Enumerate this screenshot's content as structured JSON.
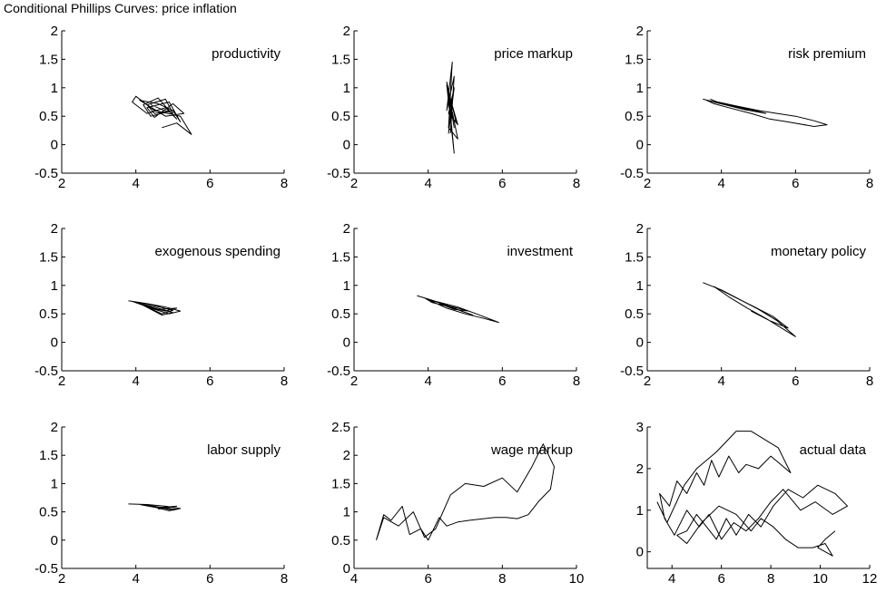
{
  "figure_title": "Conditional Phillips Curves: price inflation",
  "colors": {
    "line": "#000000",
    "background": "#ffffff"
  },
  "chart_data": [
    {
      "type": "line",
      "title": "productivity",
      "xlim": [
        2,
        8
      ],
      "ylim": [
        -0.5,
        2
      ],
      "xticks": [
        "2",
        "4",
        "6",
        "8"
      ],
      "yticks": [
        "-0.5",
        "0",
        "0.5",
        "1",
        "1.5",
        "2"
      ],
      "series": [
        {
          "x": [
            4.7,
            5.1,
            5.5,
            5.2,
            4.5,
            4.0,
            3.9,
            4.3,
            4.8,
            5.1,
            4.6,
            4.2,
            4.4,
            5.0,
            5.2,
            4.9,
            4.3,
            4.5,
            5.0,
            5.3,
            4.8,
            4.1,
            4.6,
            5.0,
            4.5,
            4.3,
            4.8,
            5.0,
            4.7,
            4.4
          ],
          "y": [
            0.3,
            0.38,
            0.18,
            0.5,
            0.6,
            0.85,
            0.75,
            0.55,
            0.65,
            0.45,
            0.82,
            0.7,
            0.5,
            0.6,
            0.4,
            0.75,
            0.65,
            0.48,
            0.72,
            0.55,
            0.5,
            0.78,
            0.72,
            0.6,
            0.55,
            0.7,
            0.8,
            0.55,
            0.62,
            0.7
          ]
        }
      ]
    },
    {
      "type": "line",
      "title": "price markup",
      "xlim": [
        2,
        8
      ],
      "ylim": [
        -0.5,
        2
      ],
      "xticks": [
        "2",
        "4",
        "6",
        "8"
      ],
      "yticks": [
        "-0.5",
        "0",
        "0.5",
        "1",
        "1.5",
        "2"
      ],
      "series": [
        {
          "x": [
            4.6,
            4.7,
            4.5,
            4.65,
            4.55,
            4.8,
            4.5,
            4.7,
            4.55,
            4.6,
            4.75,
            4.5,
            4.7,
            4.6,
            4.65,
            4.55,
            4.7,
            4.55,
            4.8,
            4.6
          ],
          "y": [
            0.2,
            1.2,
            0.6,
            1.45,
            0.3,
            0.1,
            1.05,
            -0.15,
            0.9,
            0.5,
            0.4,
            1.1,
            0.3,
            0.7,
            0.85,
            0.2,
            1.0,
            0.55,
            0.35,
            0.8
          ]
        }
      ]
    },
    {
      "type": "line",
      "title": "risk premium",
      "xlim": [
        2,
        8
      ],
      "ylim": [
        -0.5,
        2
      ],
      "xticks": [
        "2",
        "4",
        "6",
        "8"
      ],
      "yticks": [
        "-0.5",
        "0",
        "0.5",
        "1",
        "1.5",
        "2"
      ],
      "series": [
        {
          "x": [
            3.5,
            4.0,
            4.5,
            5.0,
            5.5,
            6.0,
            6.5,
            6.85,
            6.5,
            5.8,
            5.3,
            4.8,
            4.2,
            3.8,
            3.6,
            4.1,
            4.6,
            5.2,
            4.9,
            4.3,
            3.9,
            4.4,
            5.0,
            4.6,
            4.0,
            3.7
          ],
          "y": [
            0.8,
            0.72,
            0.66,
            0.6,
            0.55,
            0.5,
            0.42,
            0.35,
            0.32,
            0.4,
            0.45,
            0.55,
            0.65,
            0.72,
            0.78,
            0.7,
            0.62,
            0.55,
            0.6,
            0.68,
            0.75,
            0.68,
            0.6,
            0.63,
            0.72,
            0.8
          ]
        }
      ]
    },
    {
      "type": "line",
      "title": "exogenous spending",
      "xlim": [
        2,
        8
      ],
      "ylim": [
        -0.5,
        2
      ],
      "xticks": [
        "2",
        "4",
        "6",
        "8"
      ],
      "yticks": [
        "-0.5",
        "0",
        "0.5",
        "1",
        "1.5",
        "2"
      ],
      "series": [
        {
          "x": [
            3.8,
            4.3,
            4.8,
            5.2,
            4.9,
            4.4,
            4.0,
            4.5,
            5.0,
            4.7,
            4.2,
            3.9,
            4.6,
            5.1,
            4.8,
            4.3,
            4.7,
            5.0,
            4.4,
            4.1
          ],
          "y": [
            0.73,
            0.68,
            0.62,
            0.55,
            0.5,
            0.6,
            0.7,
            0.62,
            0.52,
            0.48,
            0.65,
            0.72,
            0.58,
            0.6,
            0.55,
            0.62,
            0.5,
            0.56,
            0.66,
            0.7
          ]
        }
      ]
    },
    {
      "type": "line",
      "title": "investment",
      "xlim": [
        2,
        8
      ],
      "ylim": [
        -0.5,
        2
      ],
      "xticks": [
        "2",
        "4",
        "6",
        "8"
      ],
      "yticks": [
        "-0.5",
        "0",
        "0.5",
        "1",
        "1.5",
        "2"
      ],
      "series": [
        {
          "x": [
            3.7,
            4.2,
            4.8,
            5.3,
            5.9,
            5.5,
            5.0,
            4.5,
            4.0,
            4.4,
            4.9,
            5.2,
            4.6,
            4.1,
            3.9,
            4.5,
            5.1,
            4.7,
            4.3
          ],
          "y": [
            0.82,
            0.72,
            0.62,
            0.5,
            0.35,
            0.42,
            0.5,
            0.6,
            0.75,
            0.68,
            0.55,
            0.48,
            0.62,
            0.7,
            0.78,
            0.65,
            0.55,
            0.58,
            0.68
          ]
        }
      ]
    },
    {
      "type": "line",
      "title": "monetary policy",
      "xlim": [
        2,
        8
      ],
      "ylim": [
        -0.5,
        2
      ],
      "xticks": [
        "2",
        "4",
        "6",
        "8"
      ],
      "yticks": [
        "-0.5",
        "0",
        "0.5",
        "1",
        "1.5",
        "2"
      ],
      "series": [
        {
          "x": [
            3.5,
            4.0,
            4.5,
            5.0,
            5.5,
            6.0,
            5.7,
            5.2,
            4.7,
            4.2,
            3.8,
            4.4,
            4.9,
            5.4,
            5.8,
            5.3,
            4.8
          ],
          "y": [
            1.05,
            0.92,
            0.75,
            0.58,
            0.38,
            0.1,
            0.22,
            0.42,
            0.6,
            0.8,
            0.98,
            0.78,
            0.62,
            0.45,
            0.25,
            0.38,
            0.55
          ]
        }
      ]
    },
    {
      "type": "line",
      "title": "labor supply",
      "xlim": [
        2,
        8
      ],
      "ylim": [
        -0.5,
        2
      ],
      "xticks": [
        "2",
        "4",
        "6",
        "8"
      ],
      "yticks": [
        "-0.5",
        "0",
        "0.5",
        "1",
        "1.5",
        "2"
      ],
      "series": [
        {
          "x": [
            3.8,
            4.3,
            4.8,
            5.2,
            5.0,
            4.5,
            4.1,
            4.6,
            5.1,
            4.9,
            4.4,
            4.7,
            5.1,
            4.6
          ],
          "y": [
            0.64,
            0.63,
            0.6,
            0.56,
            0.53,
            0.6,
            0.63,
            0.57,
            0.55,
            0.52,
            0.6,
            0.58,
            0.6,
            0.55
          ]
        }
      ]
    },
    {
      "type": "line",
      "title": "wage markup",
      "xlim": [
        4,
        10
      ],
      "ylim": [
        0,
        2.5
      ],
      "xticks": [
        "4",
        "6",
        "8",
        "10"
      ],
      "yticks": [
        "0",
        "0.5",
        "1",
        "1.5",
        "2",
        "2.5"
      ],
      "series": [
        {
          "x": [
            4.6,
            4.8,
            5.2,
            5.6,
            5.9,
            6.2,
            6.6,
            7.0,
            7.5,
            8.0,
            8.4,
            8.8,
            9.1,
            9.4,
            9.3,
            9.0,
            8.7,
            8.4,
            8.1,
            7.8,
            7.5,
            7.1,
            6.8,
            6.5,
            6.3,
            6.0,
            5.8,
            5.5,
            5.3,
            5.0,
            4.8,
            4.6
          ],
          "y": [
            0.5,
            0.9,
            0.75,
            1.0,
            0.55,
            0.7,
            1.3,
            1.5,
            1.45,
            1.6,
            1.35,
            1.8,
            2.2,
            1.8,
            1.4,
            1.2,
            0.95,
            0.88,
            0.9,
            0.9,
            0.88,
            0.85,
            0.82,
            0.75,
            0.9,
            0.5,
            0.7,
            0.6,
            1.1,
            0.85,
            0.95,
            0.5
          ]
        }
      ]
    },
    {
      "type": "line",
      "title": "actual data",
      "xlim": [
        3,
        12
      ],
      "ylim": [
        -0.4,
        3
      ],
      "xticks": [
        "4",
        "6",
        "8",
        "10",
        "12"
      ],
      "yticks": [
        "0",
        "1",
        "2",
        "3"
      ],
      "series": [
        {
          "x": [
            3.4,
            3.8,
            4.5,
            5.0,
            5.8,
            6.6,
            7.2,
            8.3,
            8.8,
            8.0,
            7.5,
            7.0,
            6.7,
            6.3,
            5.9,
            5.6,
            5.3,
            5.0,
            4.6,
            4.2,
            3.9,
            3.5,
            3.7,
            4.1,
            4.6,
            5.1,
            5.5,
            6.0,
            6.5,
            7.0,
            7.5,
            8.0,
            8.5,
            9.2,
            9.8,
            10.5,
            11.1,
            10.6,
            9.9,
            9.3,
            8.7,
            8.1,
            7.6,
            7.1,
            6.6,
            6.2,
            5.8,
            5.4,
            5.0,
            4.6,
            4.2,
            4.6,
            5.2,
            5.9,
            6.6,
            7.2,
            7.6,
            8.1,
            8.6,
            9.1,
            9.7,
            10.2,
            10.5,
            9.9,
            10.2,
            10.6
          ],
          "y": [
            1.2,
            0.7,
            1.6,
            2.0,
            2.4,
            2.9,
            2.9,
            2.5,
            1.9,
            2.3,
            2.0,
            2.1,
            1.9,
            2.3,
            1.8,
            2.2,
            1.6,
            1.9,
            1.4,
            1.7,
            1.1,
            1.4,
            0.8,
            0.4,
            1.0,
            0.6,
            0.9,
            0.3,
            0.7,
            0.5,
            0.8,
            1.2,
            1.5,
            1.0,
            1.2,
            0.9,
            1.1,
            1.4,
            1.6,
            1.3,
            1.5,
            1.1,
            0.6,
            0.9,
            0.4,
            0.8,
            0.3,
            0.6,
            0.9,
            0.5,
            0.4,
            0.2,
            0.7,
            1.1,
            0.9,
            0.5,
            0.8,
            0.6,
            0.3,
            0.1,
            0.1,
            0.2,
            -0.1,
            0.1,
            0.3,
            0.5
          ]
        }
      ]
    }
  ]
}
